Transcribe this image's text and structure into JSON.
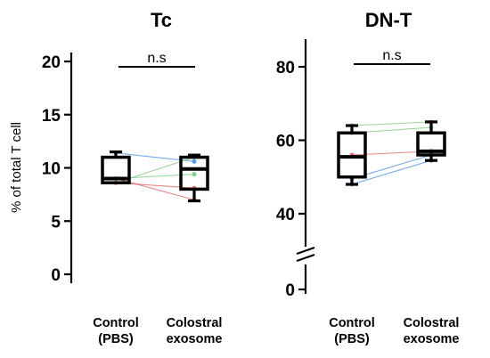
{
  "chart_data": [
    {
      "type": "box",
      "title": "Tc",
      "ylabel": "% of total T cell",
      "ylim": [
        0,
        20
      ],
      "yticks": [
        0,
        5,
        10,
        15,
        20
      ],
      "categories": [
        "Control\n(PBS)",
        "Colostral\nexosome"
      ],
      "boxes": [
        {
          "min": 8.6,
          "q1": 8.6,
          "median": 9.0,
          "q3": 11.0,
          "max": 11.5
        },
        {
          "min": 6.9,
          "q1": 8.0,
          "median": 9.9,
          "q3": 11.0,
          "max": 11.2
        }
      ],
      "paired_points": [
        {
          "color": "#4a90e2",
          "values": [
            11.4,
            10.6
          ]
        },
        {
          "color": "#7dc87d",
          "values": [
            8.6,
            11.0
          ]
        },
        {
          "color": "#e06060",
          "values": [
            9.0,
            7.0
          ]
        },
        {
          "color": "#e06060",
          "values": [
            8.6,
            8.1
          ]
        },
        {
          "color": "#7dc87d",
          "values": [
            9.0,
            9.4
          ]
        }
      ],
      "annotation": "n.s"
    },
    {
      "type": "box",
      "title": "DN-T",
      "ylim": [
        0,
        85
      ],
      "axis_break": [
        5,
        35
      ],
      "yticks": [
        0,
        40,
        60,
        80
      ],
      "categories": [
        "Control\n(PBS)",
        "Colostral\nexosome"
      ],
      "boxes": [
        {
          "min": 48,
          "q1": 50,
          "median": 55.5,
          "q3": 62,
          "max": 64
        },
        {
          "min": 54.5,
          "q1": 56,
          "median": 57,
          "q3": 62,
          "max": 65
        }
      ],
      "paired_points": [
        {
          "color": "#7dc87d",
          "values": [
            64,
            65
          ]
        },
        {
          "color": "#7dc87d",
          "values": [
            62,
            63.5
          ]
        },
        {
          "color": "#e06060",
          "values": [
            56,
            57
          ]
        },
        {
          "color": "#4a90e2",
          "values": [
            49.5,
            56
          ]
        },
        {
          "color": "#4a90e2",
          "values": [
            48,
            54.5
          ]
        }
      ],
      "annotation": "n.s"
    }
  ]
}
